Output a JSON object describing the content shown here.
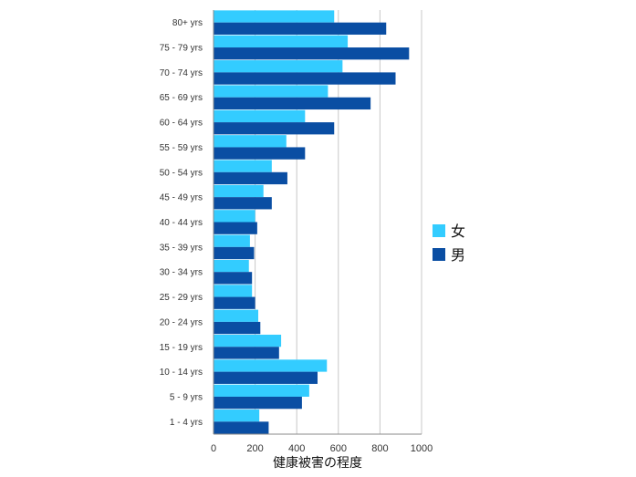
{
  "chart_data": {
    "type": "bar",
    "orientation": "horizontal",
    "categories": [
      "80+ yrs",
      "75 - 79 yrs",
      "70 - 74 yrs",
      "65 - 69 yrs",
      "60 - 64 yrs",
      "55 - 59 yrs",
      "50 - 54 yrs",
      "45 - 49 yrs",
      "40 - 44 yrs",
      "35 - 39 yrs",
      "30 - 34 yrs",
      "25 - 29 yrs",
      "20 - 24 yrs",
      "15 - 19 yrs",
      "10 - 14 yrs",
      "5 - 9 yrs",
      "1 - 4 yrs"
    ],
    "series": [
      {
        "name": "女",
        "color": "#33ccff",
        "values": [
          580,
          645,
          620,
          550,
          440,
          350,
          280,
          240,
          200,
          175,
          170,
          185,
          215,
          325,
          545,
          460,
          220
        ]
      },
      {
        "name": "男",
        "color": "#0a4ea3",
        "values": [
          830,
          940,
          875,
          755,
          580,
          440,
          355,
          280,
          210,
          195,
          185,
          200,
          225,
          315,
          500,
          425,
          265
        ]
      }
    ],
    "xlim": [
      0,
      1000
    ],
    "xticks": [
      "0",
      "200",
      "400",
      "600",
      "800",
      "1000"
    ],
    "xlabel": "健康被害の程度",
    "grid": "vertical",
    "legend_position": "right"
  }
}
